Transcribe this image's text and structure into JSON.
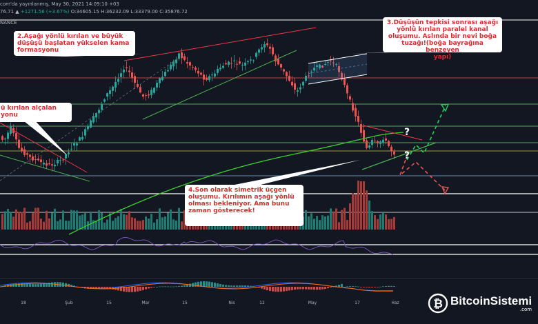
{
  "header": {
    "line1": "com'da yayınlanmış, May 30, 2021 14:09:10 +03",
    "line2_prefix": "76.71 ▲ ",
    "line2_change": "+1271.56 (+3.67%)",
    "line2_rest": " O:34605.15 H:36232.09 L:33379.00 C:35876.72",
    "line3": "NANCE"
  },
  "callouts": {
    "c1": [
      "ü kırılan alçalan",
      "yonu"
    ],
    "c2": [
      "2.Aşağı yönlü kırılan ve büyük",
      "düşüşü başlatan yükselen kama",
      "formasyonu"
    ],
    "c3": [
      "3.Düşüşün tepkisi sonrası aşağı",
      "yönlü kırılan paralel kanal",
      "oluşumu. Aslında bir nevi boğa",
      "tuzağı!(boğa bayrağına benzeyen",
      "yapı)"
    ],
    "c4": [
      "4.Son olarak simetrik üçgen",
      "oluşumu. Kırılımın aşağı yönlü",
      "olması bekleniyor. Ama bunu",
      "zaman gösterecek!"
    ]
  },
  "question_mark": "?",
  "xaxis": {
    "ticks": [
      "18",
      "Şub",
      "15",
      "Mar",
      "15",
      "Nis",
      "12",
      "May",
      "17",
      "Haz"
    ]
  },
  "logo": {
    "brand": "BitcoinSistemi",
    "suffix": ".com",
    "symbol": "₿"
  },
  "colors": {
    "background": "#131722",
    "up": "#26a69a",
    "down": "#ef5350",
    "trend_red": "#f23645",
    "trend_green": "#4caf50",
    "ma_green": "#3ccf2e",
    "macd": "#2962ff",
    "signal": "#ff6d00",
    "rsi": "#7e57c2"
  },
  "chart_data": {
    "type": "candlestick",
    "title": "",
    "price_scale": "log",
    "price_ylim": [
      24000,
      66000
    ],
    "approx_close_by_period": [
      {
        "x": "18",
        "close": 36500
      },
      {
        "x": "Şub",
        "close": 33500
      },
      {
        "x": "15",
        "close": 48000
      },
      {
        "x": "Mar",
        "close": 47000
      },
      {
        "x": "15",
        "close": 56000
      },
      {
        "x": "Nis",
        "close": 58500
      },
      {
        "x": "12",
        "close": 61500
      },
      {
        "x": "May",
        "close": 55000
      },
      {
        "x": "17",
        "close": 43000
      },
      {
        "x": "Haz",
        "close": 35876.72
      }
    ],
    "last_bar": {
      "date": "May 30, 2021",
      "open": 34605.15,
      "high": 36232.09,
      "low": 33379.0,
      "close": 35876.72,
      "change": 1271.56,
      "change_pct": 3.67
    },
    "indicators": [
      "Volume",
      "RSI",
      "MACD"
    ],
    "grid": false,
    "legend": "none"
  }
}
